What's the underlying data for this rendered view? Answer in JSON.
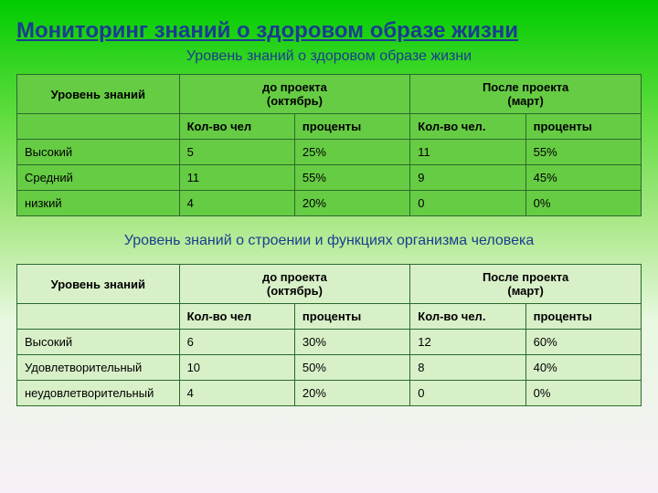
{
  "main_title": "Мониторинг знаний о здоровом образе жизни",
  "table1": {
    "subtitle": "Уровень знаний о здоровом образе жизни",
    "col_level": "Уровень знаний",
    "col_before": "до проекта",
    "col_before_sub": "(октябрь)",
    "col_after": "После проекта",
    "col_after_sub": "(март)",
    "sub_count": "Кол-во чел",
    "sub_pct": "проценты",
    "sub_count2": "Кол-во чел.",
    "sub_pct2": "проценты",
    "rows": [
      {
        "level": "Высокий",
        "c1": "5",
        "p1": "25%",
        "c2": "11",
        "p2": "55%"
      },
      {
        "level": "Средний",
        "c1": "11",
        "p1": "55%",
        "c2": "9",
        "p2": "45%"
      },
      {
        "level": "низкий",
        "c1": "4",
        "p1": "20%",
        "c2": "0",
        "p2": "0%"
      }
    ]
  },
  "table2": {
    "subtitle": "Уровень знаний о строении и функциях организма человека",
    "col_level": "Уровень знаний",
    "col_before": "до проекта",
    "col_before_sub": "(октябрь)",
    "col_after": "После проекта",
    "col_after_sub": "(март)",
    "sub_count": "Кол-во чел",
    "sub_pct": "проценты",
    "sub_count2": "Кол-во чел.",
    "sub_pct2": "проценты",
    "rows": [
      {
        "level": "Высокий",
        "c1": "6",
        "p1": "30%",
        "c2": "12",
        "p2": "60%"
      },
      {
        "level": "Удовлетворительный",
        "c1": "10",
        "p1": "50%",
        "c2": "8",
        "p2": "40%"
      },
      {
        "level": "неудовлетворительный",
        "c1": "4",
        "p1": "20%",
        "c2": "0",
        "p2": "0%"
      }
    ]
  }
}
